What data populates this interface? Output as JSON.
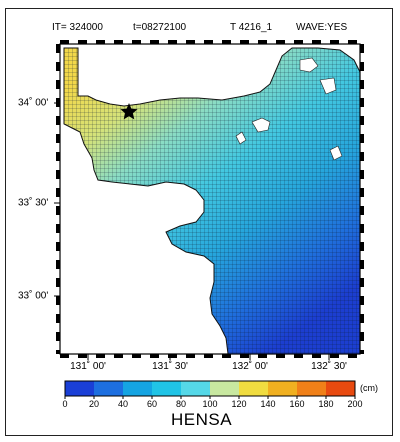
{
  "header": {
    "iteration": "IT=  324000",
    "time": "t=08272100",
    "case": "T 4216_1",
    "wave": "WAVE:YES"
  },
  "map": {
    "lat_labels": [
      "34˚ 00'",
      "33˚ 30'",
      "33˚ 00'"
    ],
    "lon_labels": [
      "131˚ 00'",
      "131˚ 30'",
      "132˚ 00'",
      "132˚ 30'"
    ],
    "marker": "star",
    "land_color": "#ffffff",
    "grid_color": "#0a1a30"
  },
  "colorbar": {
    "ticks": [
      "0",
      "20",
      "40",
      "60",
      "80",
      "100",
      "120",
      "140",
      "160",
      "180",
      "200"
    ],
    "colors": [
      "#1a3fd6",
      "#1d6fe0",
      "#15a4e2",
      "#20c4e6",
      "#55d8e8",
      "#c8e8a0",
      "#f0dc40",
      "#f0b020",
      "#f08018",
      "#e84a10"
    ],
    "unit": "(cm)",
    "title": "HENSA"
  }
}
